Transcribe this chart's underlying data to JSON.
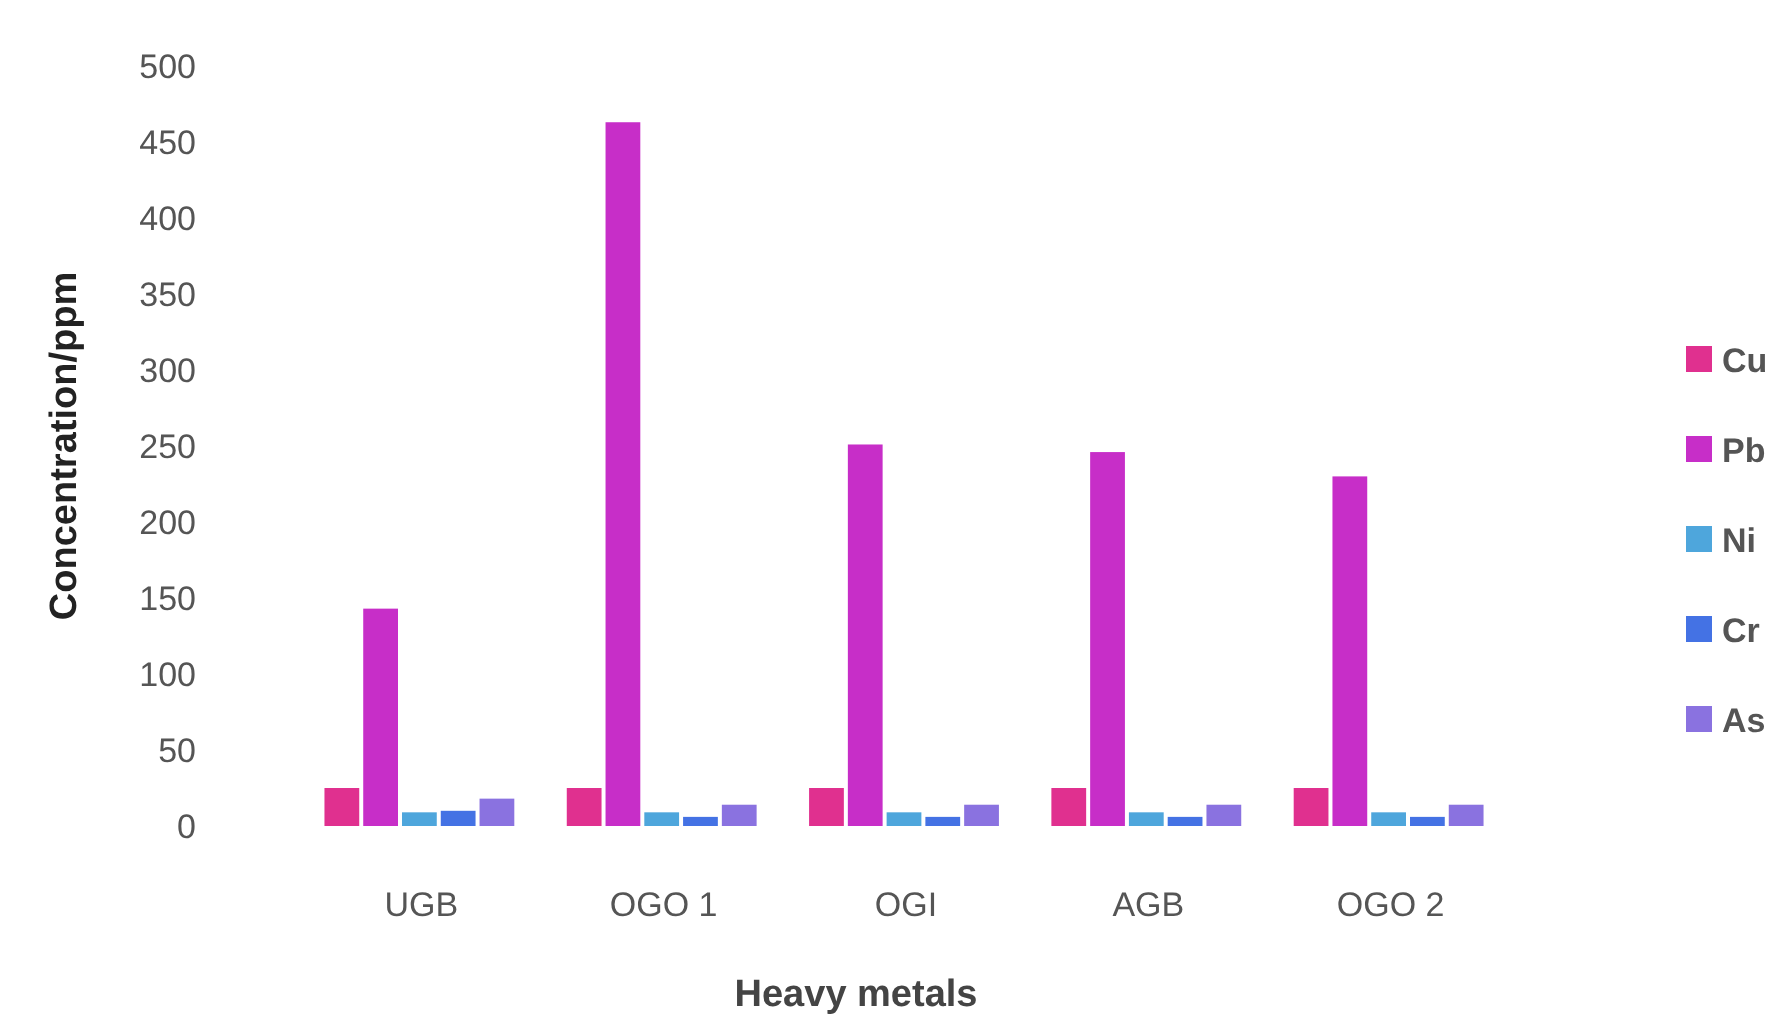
{
  "chart_data": {
    "type": "bar",
    "xlabel": "Heavy metals",
    "ylabel": "Concentration/ppm",
    "categories": [
      "UGB",
      "OGO 1",
      "OGI",
      "AGB",
      "OGO 2"
    ],
    "series": [
      {
        "name": "Cu",
        "color": "#e0308f",
        "values": [
          25,
          25,
          25,
          25,
          25
        ]
      },
      {
        "name": "Pb",
        "color": "#c72ec8",
        "values": [
          143,
          463,
          251,
          246,
          230
        ]
      },
      {
        "name": "Ni",
        "color": "#4ea6dc",
        "values": [
          9,
          9,
          9,
          9,
          9
        ]
      },
      {
        "name": "Cr",
        "color": "#4472e4",
        "values": [
          10,
          6,
          6,
          6,
          6
        ]
      },
      {
        "name": "As",
        "color": "#8a72e0",
        "values": [
          18,
          14,
          14,
          14,
          14
        ]
      }
    ],
    "ylim": [
      0,
      500
    ],
    "yticks": [
      0,
      50,
      100,
      150,
      200,
      250,
      300,
      350,
      400,
      450,
      500
    ],
    "grid": false,
    "legend": "right"
  }
}
